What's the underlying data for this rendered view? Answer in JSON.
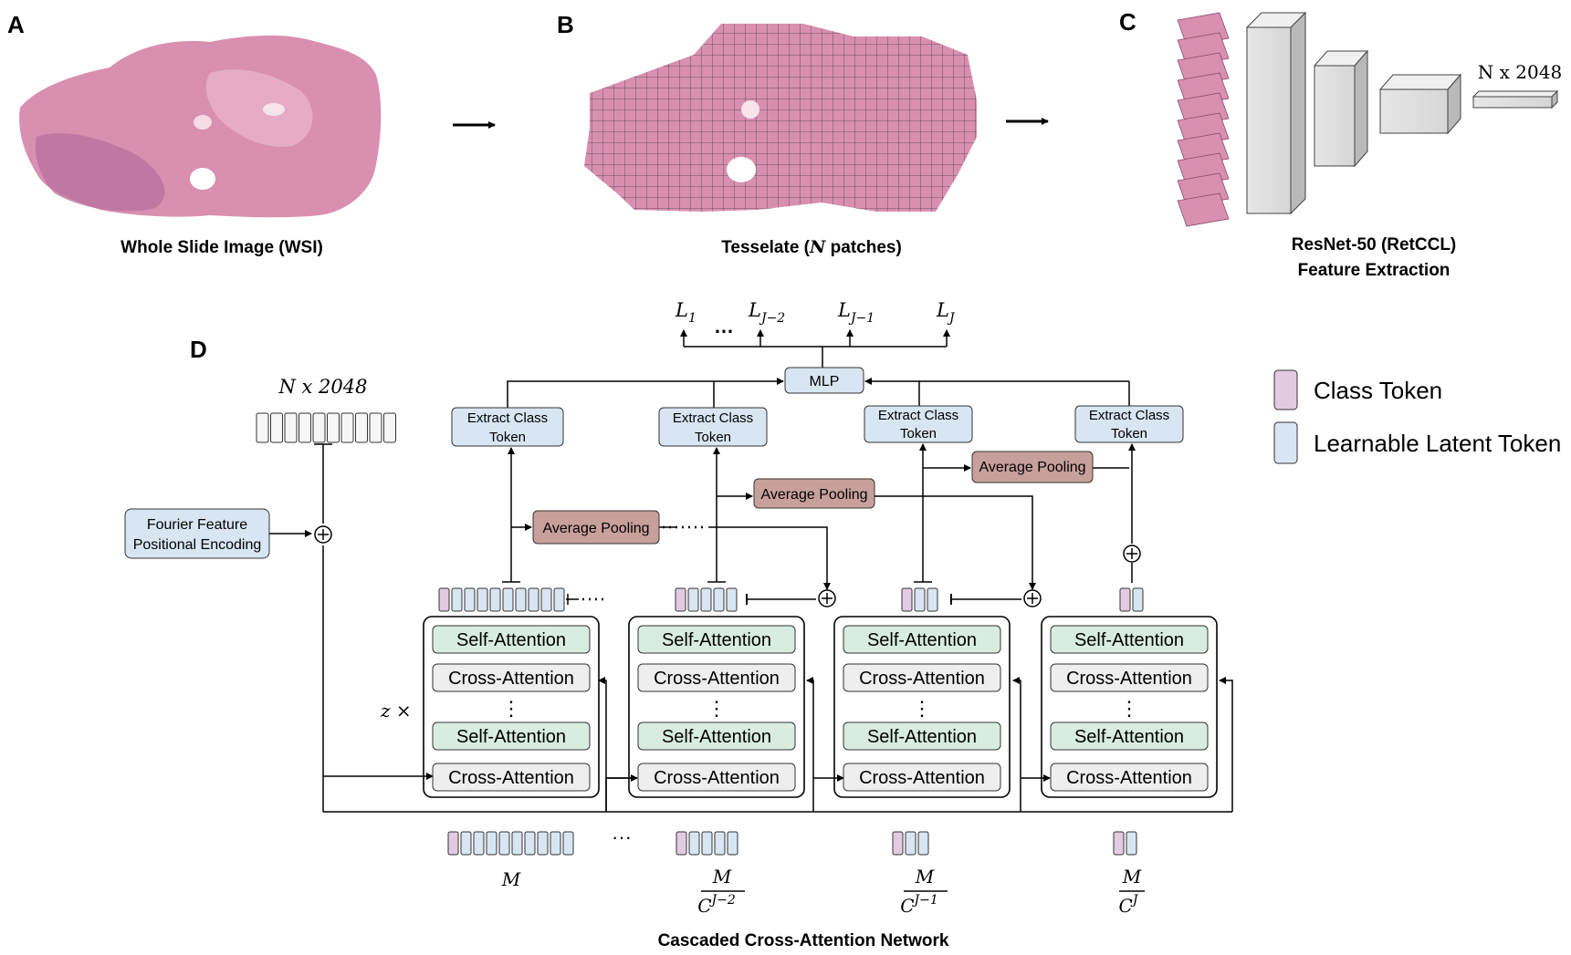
{
  "panels": {
    "a": {
      "letter": "A",
      "caption": "Whole Slide Image (WSI)"
    },
    "b": {
      "letter": "B",
      "caption_pre": "Tesselate (",
      "caption_var": "N",
      "caption_post": " patches)"
    },
    "c": {
      "letter": "C",
      "caption_line1": "ResNet-50 (RetCCL)",
      "caption_line2": "Feature Extraction",
      "output_label": "N x 2048"
    },
    "d": {
      "letter": "D",
      "input_label": "N x 2048",
      "repeat_label": "z ×",
      "network_caption": "Cascaded Cross-Attention Network"
    }
  },
  "outputs": [
    "L1",
    "...",
    "LJ−2",
    "LJ−1",
    "LJ"
  ],
  "output_labels": {
    "l1_base": "L",
    "l1_sub": "1",
    "ellipsis": "…",
    "lj2_base": "L",
    "lj2_sub": "J−2",
    "lj1_base": "L",
    "lj1_sub": "J−1",
    "lj_base": "L",
    "lj_sub": "J"
  },
  "mlp_label": "MLP",
  "fourier": {
    "line1": "Fourier Feature",
    "line2": "Positional Encoding"
  },
  "extract": {
    "line1": "Extract Class",
    "line2": "Token"
  },
  "avg_pool_label": "Average Pooling",
  "blocks": {
    "self_attention": "Self-Attention",
    "cross_attention": "Cross-Attention",
    "vdots": "⋮"
  },
  "bottom_labels": {
    "m": "M",
    "m2_num": "M",
    "m2_den": "C",
    "m2_exp": "J−2",
    "m1_num": "M",
    "m1_den": "C",
    "m1_exp": "J−1",
    "mj_num": "M",
    "mj_den": "C",
    "mj_exp": "J",
    "dots": "···"
  },
  "legend": [
    {
      "label": "Class Token",
      "color": "#e2cbe0"
    },
    {
      "label": "Learnable Latent Token",
      "color": "#d7e6f2"
    }
  ],
  "colors": {
    "class_token": "#e2cbe0",
    "latent_token": "#d7e6f2",
    "blue_box": "#d7e6f2",
    "avg_pool": "#c8a09b",
    "self_attention": "#d8ece2",
    "cross_attention": "#eeeeee",
    "tissue": "#d98fb0"
  }
}
